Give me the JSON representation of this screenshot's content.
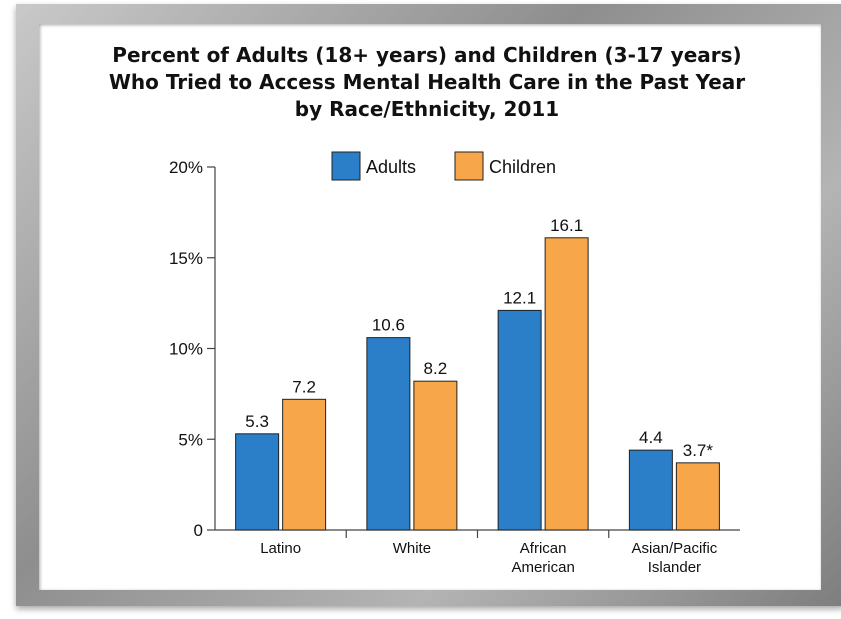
{
  "colors": {
    "adults": "#2a7fc8",
    "children": "#f7a64a",
    "axis": "#444444",
    "bar_stroke": "#222222"
  },
  "chart_data": {
    "type": "bar",
    "title_lines": [
      "Percent of Adults (18+ years) and Children (3-17 years)",
      "Who Tried to Access Mental Health Care in the Past Year",
      "by Race/Ethnicity, 2011"
    ],
    "xlabel": "",
    "ylabel": "",
    "ylim": [
      0,
      20
    ],
    "yticks": [
      0,
      5,
      10,
      15,
      20
    ],
    "ytick_labels": [
      "0",
      "5%",
      "10%",
      "15%",
      "20%"
    ],
    "categories": [
      [
        "Latino"
      ],
      [
        "White"
      ],
      [
        "African",
        "American"
      ],
      [
        "Asian/Pacific",
        "Islander"
      ]
    ],
    "series": [
      {
        "name": "Adults",
        "values": [
          5.3,
          10.6,
          12.1,
          4.4
        ],
        "labels": [
          "5.3",
          "10.6",
          "12.1",
          "4.4"
        ]
      },
      {
        "name": "Children",
        "values": [
          7.2,
          8.2,
          16.1,
          3.7
        ],
        "labels": [
          "7.2",
          "8.2",
          "16.1",
          "3.7*"
        ]
      }
    ],
    "legend_position": "top",
    "grid": false
  }
}
